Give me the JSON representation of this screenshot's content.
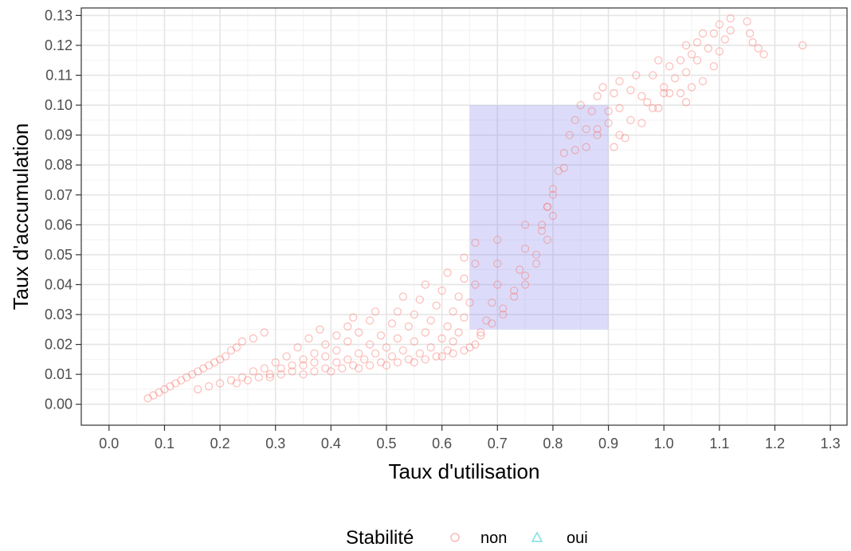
{
  "colors": {
    "non": "#F8766D",
    "oui": "#00BFC4",
    "region_fill": "#8A8AF0",
    "grid_major": "#E5E5E5",
    "grid_minor": "#F2F2F2",
    "panel_border": "#333333",
    "axis_text": "#4D4D4D"
  },
  "chart_data": {
    "type": "scatter",
    "title": "",
    "xlabel": "Taux d'utilisation",
    "ylabel": "Taux d'accumulation",
    "xlim": [
      -0.05,
      1.33
    ],
    "ylim": [
      -0.007,
      0.1325
    ],
    "x_ticks": [
      0.0,
      0.1,
      0.2,
      0.3,
      0.4,
      0.5,
      0.6,
      0.7,
      0.8,
      0.9,
      1.0,
      1.1,
      1.2,
      1.3
    ],
    "x_tick_labels": [
      "0.0",
      "0.1",
      "0.2",
      "0.3",
      "0.4",
      "0.5",
      "0.6",
      "0.7",
      "0.8",
      "0.9",
      "1.0",
      "1.1",
      "1.2",
      "1.3"
    ],
    "y_ticks": [
      0.0,
      0.01,
      0.02,
      0.03,
      0.04,
      0.05,
      0.06,
      0.07,
      0.08,
      0.09,
      0.1,
      0.11,
      0.12,
      0.13
    ],
    "y_tick_labels": [
      "0.00",
      "0.01",
      "0.02",
      "0.03",
      "0.04",
      "0.05",
      "0.06",
      "0.07",
      "0.08",
      "0.09",
      "0.10",
      "0.11",
      "0.12",
      "0.13"
    ],
    "grid": true,
    "highlight_region": {
      "x": [
        0.65,
        0.9
      ],
      "y": [
        0.025,
        0.1
      ]
    },
    "legend": {
      "title": "Stabilité",
      "position": "bottom",
      "entries": [
        {
          "label": "non",
          "shape": "circle"
        },
        {
          "label": "oui",
          "shape": "triangle"
        }
      ]
    },
    "series": [
      {
        "name": "non",
        "shape": "circle",
        "points": [
          [
            0.07,
            0.002
          ],
          [
            0.08,
            0.003
          ],
          [
            0.09,
            0.004
          ],
          [
            0.1,
            0.005
          ],
          [
            0.11,
            0.006
          ],
          [
            0.12,
            0.007
          ],
          [
            0.13,
            0.008
          ],
          [
            0.14,
            0.009
          ],
          [
            0.15,
            0.01
          ],
          [
            0.16,
            0.011
          ],
          [
            0.17,
            0.012
          ],
          [
            0.18,
            0.013
          ],
          [
            0.19,
            0.014
          ],
          [
            0.2,
            0.015
          ],
          [
            0.21,
            0.016
          ],
          [
            0.22,
            0.018
          ],
          [
            0.23,
            0.019
          ],
          [
            0.24,
            0.021
          ],
          [
            0.26,
            0.022
          ],
          [
            0.28,
            0.024
          ],
          [
            0.16,
            0.005
          ],
          [
            0.18,
            0.006
          ],
          [
            0.2,
            0.007
          ],
          [
            0.22,
            0.008
          ],
          [
            0.24,
            0.009
          ],
          [
            0.26,
            0.011
          ],
          [
            0.28,
            0.012
          ],
          [
            0.3,
            0.014
          ],
          [
            0.32,
            0.016
          ],
          [
            0.34,
            0.019
          ],
          [
            0.36,
            0.022
          ],
          [
            0.38,
            0.025
          ],
          [
            0.23,
            0.007
          ],
          [
            0.25,
            0.008
          ],
          [
            0.27,
            0.009
          ],
          [
            0.29,
            0.01
          ],
          [
            0.31,
            0.012
          ],
          [
            0.33,
            0.013
          ],
          [
            0.35,
            0.015
          ],
          [
            0.37,
            0.017
          ],
          [
            0.39,
            0.02
          ],
          [
            0.41,
            0.023
          ],
          [
            0.43,
            0.026
          ],
          [
            0.44,
            0.029
          ],
          [
            0.29,
            0.009
          ],
          [
            0.31,
            0.01
          ],
          [
            0.33,
            0.011
          ],
          [
            0.35,
            0.013
          ],
          [
            0.37,
            0.014
          ],
          [
            0.39,
            0.016
          ],
          [
            0.41,
            0.018
          ],
          [
            0.43,
            0.021
          ],
          [
            0.45,
            0.024
          ],
          [
            0.47,
            0.028
          ],
          [
            0.48,
            0.031
          ],
          [
            0.35,
            0.01
          ],
          [
            0.37,
            0.011
          ],
          [
            0.39,
            0.012
          ],
          [
            0.41,
            0.014
          ],
          [
            0.43,
            0.015
          ],
          [
            0.45,
            0.017
          ],
          [
            0.47,
            0.02
          ],
          [
            0.49,
            0.023
          ],
          [
            0.51,
            0.027
          ],
          [
            0.52,
            0.031
          ],
          [
            0.53,
            0.036
          ],
          [
            0.4,
            0.011
          ],
          [
            0.42,
            0.012
          ],
          [
            0.44,
            0.013
          ],
          [
            0.46,
            0.015
          ],
          [
            0.48,
            0.017
          ],
          [
            0.5,
            0.019
          ],
          [
            0.52,
            0.022
          ],
          [
            0.54,
            0.026
          ],
          [
            0.55,
            0.03
          ],
          [
            0.56,
            0.035
          ],
          [
            0.57,
            0.04
          ],
          [
            0.45,
            0.012
          ],
          [
            0.47,
            0.013
          ],
          [
            0.49,
            0.014
          ],
          [
            0.51,
            0.016
          ],
          [
            0.53,
            0.018
          ],
          [
            0.55,
            0.021
          ],
          [
            0.57,
            0.024
          ],
          [
            0.58,
            0.028
          ],
          [
            0.59,
            0.033
          ],
          [
            0.6,
            0.038
          ],
          [
            0.61,
            0.044
          ],
          [
            0.5,
            0.013
          ],
          [
            0.52,
            0.014
          ],
          [
            0.54,
            0.015
          ],
          [
            0.56,
            0.017
          ],
          [
            0.58,
            0.019
          ],
          [
            0.6,
            0.022
          ],
          [
            0.61,
            0.026
          ],
          [
            0.62,
            0.031
          ],
          [
            0.63,
            0.036
          ],
          [
            0.64,
            0.042
          ],
          [
            0.64,
            0.049
          ],
          [
            0.55,
            0.014
          ],
          [
            0.57,
            0.015
          ],
          [
            0.59,
            0.016
          ],
          [
            0.61,
            0.018
          ],
          [
            0.62,
            0.021
          ],
          [
            0.63,
            0.024
          ],
          [
            0.64,
            0.029
          ],
          [
            0.65,
            0.034
          ],
          [
            0.66,
            0.04
          ],
          [
            0.66,
            0.047
          ],
          [
            0.66,
            0.054
          ],
          [
            0.6,
            0.016
          ],
          [
            0.62,
            0.017
          ],
          [
            0.64,
            0.018
          ],
          [
            0.65,
            0.019
          ],
          [
            0.66,
            0.02
          ],
          [
            0.67,
            0.023
          ],
          [
            0.68,
            0.028
          ],
          [
            0.69,
            0.034
          ],
          [
            0.7,
            0.04
          ],
          [
            0.7,
            0.047
          ],
          [
            0.7,
            0.055
          ],
          [
            0.67,
            0.024
          ],
          [
            0.69,
            0.027
          ],
          [
            0.71,
            0.032
          ],
          [
            0.73,
            0.038
          ],
          [
            0.74,
            0.045
          ],
          [
            0.75,
            0.052
          ],
          [
            0.75,
            0.06
          ],
          [
            0.71,
            0.03
          ],
          [
            0.73,
            0.036
          ],
          [
            0.75,
            0.043
          ],
          [
            0.77,
            0.05
          ],
          [
            0.78,
            0.058
          ],
          [
            0.79,
            0.066
          ],
          [
            0.75,
            0.04
          ],
          [
            0.77,
            0.047
          ],
          [
            0.79,
            0.055
          ],
          [
            0.8,
            0.063
          ],
          [
            0.8,
            0.07
          ],
          [
            0.78,
            0.06
          ],
          [
            0.79,
            0.066
          ],
          [
            0.8,
            0.072
          ],
          [
            0.81,
            0.078
          ],
          [
            0.82,
            0.084
          ],
          [
            0.83,
            0.09
          ],
          [
            0.84,
            0.095
          ],
          [
            0.85,
            0.1
          ],
          [
            0.82,
            0.079
          ],
          [
            0.84,
            0.085
          ],
          [
            0.86,
            0.092
          ],
          [
            0.87,
            0.098
          ],
          [
            0.88,
            0.103
          ],
          [
            0.89,
            0.106
          ],
          [
            0.86,
            0.086
          ],
          [
            0.88,
            0.092
          ],
          [
            0.9,
            0.098
          ],
          [
            0.91,
            0.104
          ],
          [
            0.92,
            0.108
          ],
          [
            0.88,
            0.09
          ],
          [
            0.9,
            0.094
          ],
          [
            0.92,
            0.099
          ],
          [
            0.94,
            0.105
          ],
          [
            0.95,
            0.11
          ],
          [
            0.91,
            0.086
          ],
          [
            0.92,
            0.09
          ],
          [
            0.94,
            0.095
          ],
          [
            0.96,
            0.103
          ],
          [
            0.98,
            0.11
          ],
          [
            0.99,
            0.115
          ],
          [
            0.93,
            0.089
          ],
          [
            0.96,
            0.094
          ],
          [
            0.98,
            0.099
          ],
          [
            1.0,
            0.106
          ],
          [
            1.01,
            0.113
          ],
          [
            0.97,
            0.101
          ],
          [
            0.99,
            0.099
          ],
          [
            1.0,
            0.104
          ],
          [
            1.02,
            0.109
          ],
          [
            1.03,
            0.115
          ],
          [
            1.04,
            0.12
          ],
          [
            1.01,
            0.104
          ],
          [
            1.03,
            0.104
          ],
          [
            1.04,
            0.111
          ],
          [
            1.05,
            0.117
          ],
          [
            1.06,
            0.121
          ],
          [
            1.07,
            0.124
          ],
          [
            1.04,
            0.101
          ],
          [
            1.05,
            0.106
          ],
          [
            1.06,
            0.115
          ],
          [
            1.08,
            0.119
          ],
          [
            1.09,
            0.124
          ],
          [
            1.1,
            0.127
          ],
          [
            1.07,
            0.108
          ],
          [
            1.09,
            0.113
          ],
          [
            1.1,
            0.118
          ],
          [
            1.11,
            0.122
          ],
          [
            1.12,
            0.125
          ],
          [
            1.12,
            0.129
          ],
          [
            1.15,
            0.128
          ],
          [
            1.155,
            0.124
          ],
          [
            1.16,
            0.121
          ],
          [
            1.17,
            0.119
          ],
          [
            1.18,
            0.117
          ],
          [
            1.25,
            0.12
          ]
        ]
      }
    ]
  }
}
